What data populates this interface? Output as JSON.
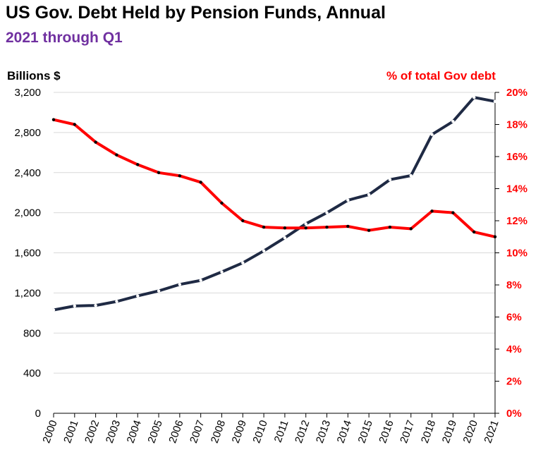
{
  "title": "US Gov. Debt Held by Pension Funds, Annual",
  "subtitle": "2021 through Q1",
  "colors": {
    "subtitle": "#7030A0",
    "debt_line": "#1F2A44",
    "pct_line": "#FF0000",
    "grid": "#D9D9D9",
    "axis": "#000000"
  },
  "chart_data": {
    "type": "line",
    "title": "US Gov. Debt Held by Pension Funds, Annual",
    "subtitle": "2021 through Q1",
    "xlabel": "",
    "ylabel": "Billions $",
    "y2label": "% of total Gov debt",
    "ylim": [
      0,
      3200
    ],
    "y2lim": [
      0,
      20
    ],
    "grid": true,
    "x": [
      "2000",
      "2001",
      "2002",
      "2003",
      "2004",
      "2005",
      "2006",
      "2007",
      "2008",
      "2009",
      "2010",
      "2011",
      "2012",
      "2013",
      "2014",
      "2015",
      "2016",
      "2017",
      "2018",
      "2019",
      "2020",
      "2021"
    ],
    "y_ticks": [
      "0",
      "400",
      "800",
      "1,200",
      "1,600",
      "2,000",
      "2,400",
      "2,800",
      "3,200"
    ],
    "y2_ticks": [
      "0%",
      "2%",
      "4%",
      "6%",
      "8%",
      "10%",
      "12%",
      "14%",
      "16%",
      "18%",
      "20%"
    ],
    "series": [
      {
        "axis": "left",
        "values": [
          1030,
          1070,
          1075,
          1115,
          1170,
          1220,
          1285,
          1325,
          1410,
          1500,
          1620,
          1750,
          1890,
          2000,
          2125,
          2180,
          2330,
          2370,
          2780,
          2910,
          3150,
          3110
        ]
      },
      {
        "axis": "right",
        "values": [
          18.3,
          18.0,
          16.9,
          16.1,
          15.5,
          15.0,
          14.8,
          14.4,
          13.1,
          12.0,
          11.6,
          11.55,
          11.55,
          11.6,
          11.65,
          11.4,
          11.6,
          11.5,
          12.6,
          12.5,
          11.3,
          11.0
        ]
      }
    ]
  }
}
